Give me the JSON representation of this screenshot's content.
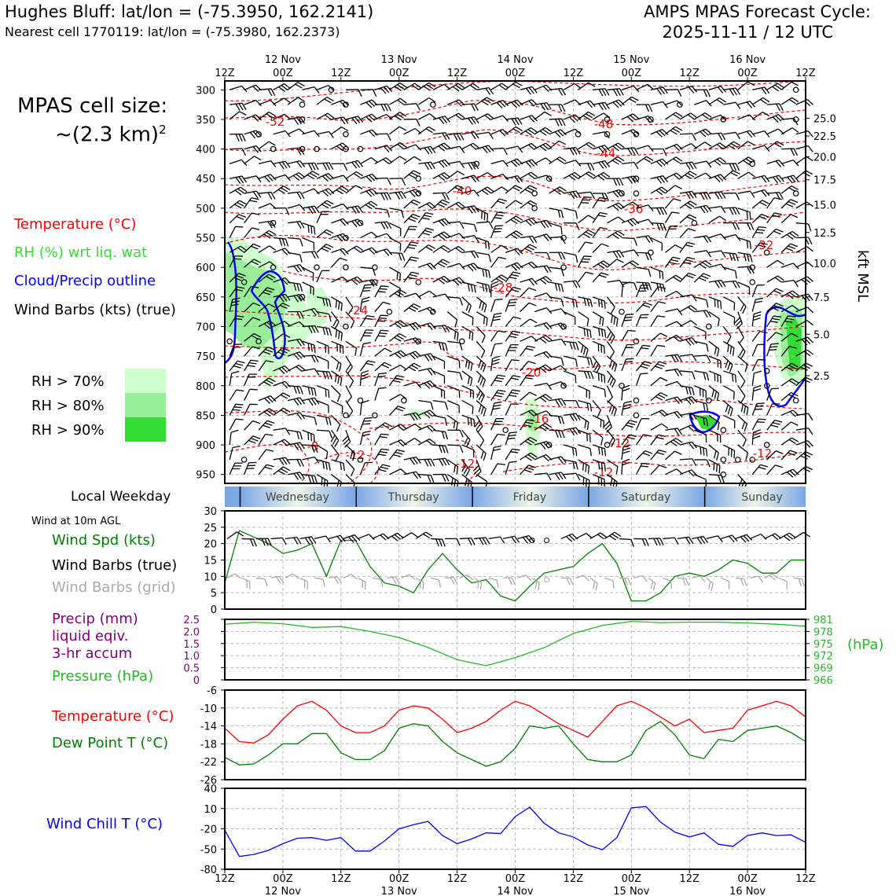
{
  "title": {
    "station": "Hughes Bluff: lat/lon = (-75.3950, 162.2141)",
    "nearest": "Nearest cell 1770119: lat/lon = (-75.3980, 162.2373)",
    "cycle_line1": "AMPS MPAS Forecast Cycle:",
    "cycle_line2": "2025-11-11 / 12 UTC"
  },
  "cell_size": {
    "line1": "MPAS cell size:",
    "line2": "~(2.3 km)",
    "sup": "2"
  },
  "legend": {
    "temperature": "Temperature (°C)",
    "rh": "RH (%) wrt liq. wat",
    "cloud": "Cloud/Precip outline",
    "wind": "Wind Barbs (kts) (true)",
    "rh70": "RH > 70%",
    "rh80": "RH > 80%",
    "rh90": "RH > 90%"
  },
  "panel_labels": {
    "local_weekday": "Local Weekday",
    "wind_10m": "Wind at 10m AGL",
    "wind_spd": "Wind Spd (kts)",
    "wind_barbs_true": "Wind Barbs (true)",
    "wind_barbs_grid": "Wind Barbs (grid)",
    "precip1": "Precip (mm)",
    "precip2": "liquid eqiv.",
    "precip3": "3-hr accum",
    "pressure": "Pressure (hPa)",
    "pressure_unit": "(hPa)",
    "temperature": "Temperature (°C)",
    "dewpoint": "Dew Point T (°C)",
    "windchill": "Wind Chill T (°C)",
    "kft": "kft MSL"
  },
  "colors": {
    "temp": "#ff0000",
    "dew": "#008000",
    "rh": "#33dd33",
    "cloud": "#0000ff",
    "pressure": "#22bb22",
    "precip": "#800080",
    "grid_barb": "#aaaaaa",
    "windchill": "#0000ff",
    "rh70": "#ccffcc",
    "rh80": "#99ee99",
    "rh90": "#33dd33"
  },
  "time_axis": {
    "ticks": [
      "12Z",
      "00Z",
      "12Z",
      "00Z",
      "12Z",
      "00Z",
      "12Z",
      "00Z",
      "12Z",
      "00Z",
      "12Z"
    ],
    "dates": [
      "12 Nov",
      "13 Nov",
      "14 Nov",
      "15 Nov",
      "16 Nov"
    ],
    "hours": [
      0,
      12,
      24,
      36,
      48,
      60,
      72,
      84,
      96,
      108,
      120
    ]
  },
  "weekdays": [
    "Wednesday",
    "Thursday",
    "Friday",
    "Saturday",
    "Sunday"
  ],
  "chart_data": [
    {
      "type": "heatmap",
      "title": "",
      "ylabel_left": "",
      "ylabel_right": "kft MSL",
      "pressure_ticks": [
        "300",
        "350",
        "400",
        "450",
        "500",
        "550",
        "600",
        "650",
        "700",
        "750",
        "800",
        "850",
        "900",
        "950"
      ],
      "pressure_values": [
        300,
        350,
        400,
        450,
        500,
        550,
        600,
        650,
        700,
        750,
        800,
        850,
        900,
        950
      ],
      "height_ticks": [
        "25.0",
        "22.5",
        "20.0",
        "17.5",
        "15.0",
        "12.5",
        "10.0",
        "7.5",
        "5.0",
        "2.5"
      ],
      "height_pressure": [
        348,
        378,
        413,
        452,
        494,
        541,
        593,
        650,
        713,
        783
      ],
      "ylim": [
        285,
        965
      ],
      "contour_labels": [
        "-52",
        "-48",
        "-44",
        "-40",
        "-36",
        "-32",
        "-28",
        "-24",
        "-20",
        "-16",
        "-12",
        "-8",
        "-12",
        "-12",
        "-12",
        "-12"
      ]
    },
    {
      "type": "line",
      "title": "",
      "ylabel": "Wind Spd (kts)",
      "yticks": [
        "0",
        "5",
        "10",
        "15",
        "20",
        "25",
        "30"
      ],
      "ylim": [
        0,
        30
      ],
      "x_hours": [
        0,
        3,
        6,
        9,
        12,
        15,
        18,
        21,
        24,
        27,
        30,
        33,
        36,
        39,
        42,
        45,
        48,
        51,
        54,
        57,
        60,
        63,
        66,
        69,
        72,
        75,
        78,
        81,
        84,
        87,
        90,
        93,
        96,
        99,
        102,
        105,
        108,
        111,
        114,
        117,
        120
      ],
      "series": [
        {
          "name": "Wind Spd (kts)",
          "values": [
            8,
            24,
            22,
            20,
            17,
            18,
            20,
            10,
            21,
            21,
            13,
            8,
            7,
            5,
            12,
            17,
            12,
            8,
            9,
            4,
            2.5,
            7,
            11,
            12,
            13,
            17,
            20,
            14,
            2.5,
            2.5,
            5,
            10,
            11,
            10,
            12,
            15,
            14,
            11,
            11,
            15,
            15
          ]
        }
      ]
    },
    {
      "type": "line",
      "title": "",
      "ylabel_left": "Precip (mm)",
      "ylabel_right": "Pressure (hPa)",
      "precip_ticks": [
        "2.5",
        "2.0",
        "1.5",
        "1.0",
        "0.5",
        "0"
      ],
      "pressure_ticks": [
        "981",
        "978",
        "975",
        "972",
        "969",
        "966"
      ],
      "ylim": [
        966,
        981
      ],
      "x_hours": [
        0,
        6,
        12,
        18,
        24,
        30,
        36,
        42,
        48,
        54,
        60,
        66,
        72,
        78,
        84,
        90,
        96,
        102,
        108,
        114,
        120
      ],
      "series": [
        {
          "name": "Pressure (hPa)",
          "values": [
            979.8,
            980.3,
            979.9,
            979.0,
            979.2,
            978.0,
            976.5,
            974.0,
            971.0,
            969.5,
            971.5,
            974.0,
            977.5,
            979.5,
            980.5,
            980.2,
            980.3,
            980.3,
            980.1,
            979.8,
            979.3
          ]
        }
      ]
    },
    {
      "type": "line",
      "title": "",
      "ylabel": "Temperature (°C)",
      "yticks": [
        "-6",
        "-10",
        "-14",
        "-18",
        "-22",
        "-26"
      ],
      "ylim": [
        -26,
        -6
      ],
      "x_hours": [
        0,
        3,
        6,
        9,
        12,
        15,
        18,
        21,
        24,
        27,
        30,
        33,
        36,
        39,
        42,
        45,
        48,
        51,
        54,
        57,
        60,
        63,
        66,
        69,
        72,
        75,
        78,
        81,
        84,
        87,
        90,
        93,
        96,
        99,
        102,
        105,
        108,
        111,
        114,
        117,
        120
      ],
      "series": [
        {
          "name": "Temperature (°C)",
          "values": [
            -14.5,
            -17.5,
            -17.8,
            -16,
            -12.5,
            -9.5,
            -8.5,
            -10.5,
            -14,
            -15.5,
            -15.5,
            -14,
            -10.5,
            -9.5,
            -10,
            -12.5,
            -15.5,
            -14.5,
            -13,
            -10.5,
            -8.5,
            -9.5,
            -11.5,
            -13.5,
            -15,
            -16.5,
            -13,
            -9.5,
            -8.5,
            -10,
            -12,
            -14,
            -12.5,
            -15.5,
            -15,
            -14.5,
            -10.5,
            -9.5,
            -8.5,
            -9.5,
            -12
          ]
        },
        {
          "name": "Dew Point T (°C)",
          "values": [
            -21,
            -22.7,
            -22.5,
            -20.5,
            -18,
            -18,
            -15.7,
            -15.7,
            -20,
            -21.5,
            -21.5,
            -19.5,
            -14.5,
            -13.5,
            -14,
            -17.5,
            -20,
            -21.5,
            -23,
            -22,
            -19,
            -14,
            -14.5,
            -14,
            -18,
            -21.5,
            -22,
            -22,
            -20.5,
            -15,
            -13,
            -16,
            -20.5,
            -21.3,
            -17,
            -17.5,
            -15,
            -14.5,
            -14,
            -15.5,
            -17.5
          ]
        }
      ]
    },
    {
      "type": "line",
      "title": "",
      "ylabel": "Wind Chill T (°C)",
      "yticks": [
        "40",
        "10",
        "-20",
        "-50",
        "-80"
      ],
      "ylim": [
        -80,
        40
      ],
      "x_hours": [
        0,
        3,
        6,
        9,
        12,
        15,
        18,
        21,
        24,
        27,
        30,
        33,
        36,
        39,
        42,
        45,
        48,
        51,
        54,
        57,
        60,
        63,
        66,
        69,
        72,
        75,
        78,
        81,
        84,
        87,
        90,
        93,
        96,
        99,
        102,
        105,
        108,
        111,
        114,
        117,
        120
      ],
      "series": [
        {
          "name": "Wind Chill T (°C)",
          "values": [
            -22,
            -61,
            -58,
            -52,
            -42,
            -34,
            -33,
            -37,
            -33,
            -53,
            -53,
            -38,
            -20,
            -14,
            -9,
            -30,
            -42,
            -35,
            -26,
            -27,
            -2,
            12,
            -12,
            -26,
            -32,
            -44,
            -51,
            -33,
            11,
            13,
            -10,
            -25,
            -32,
            -26,
            -43,
            -46,
            -30,
            -26,
            -30,
            -29,
            -40
          ]
        }
      ]
    }
  ]
}
